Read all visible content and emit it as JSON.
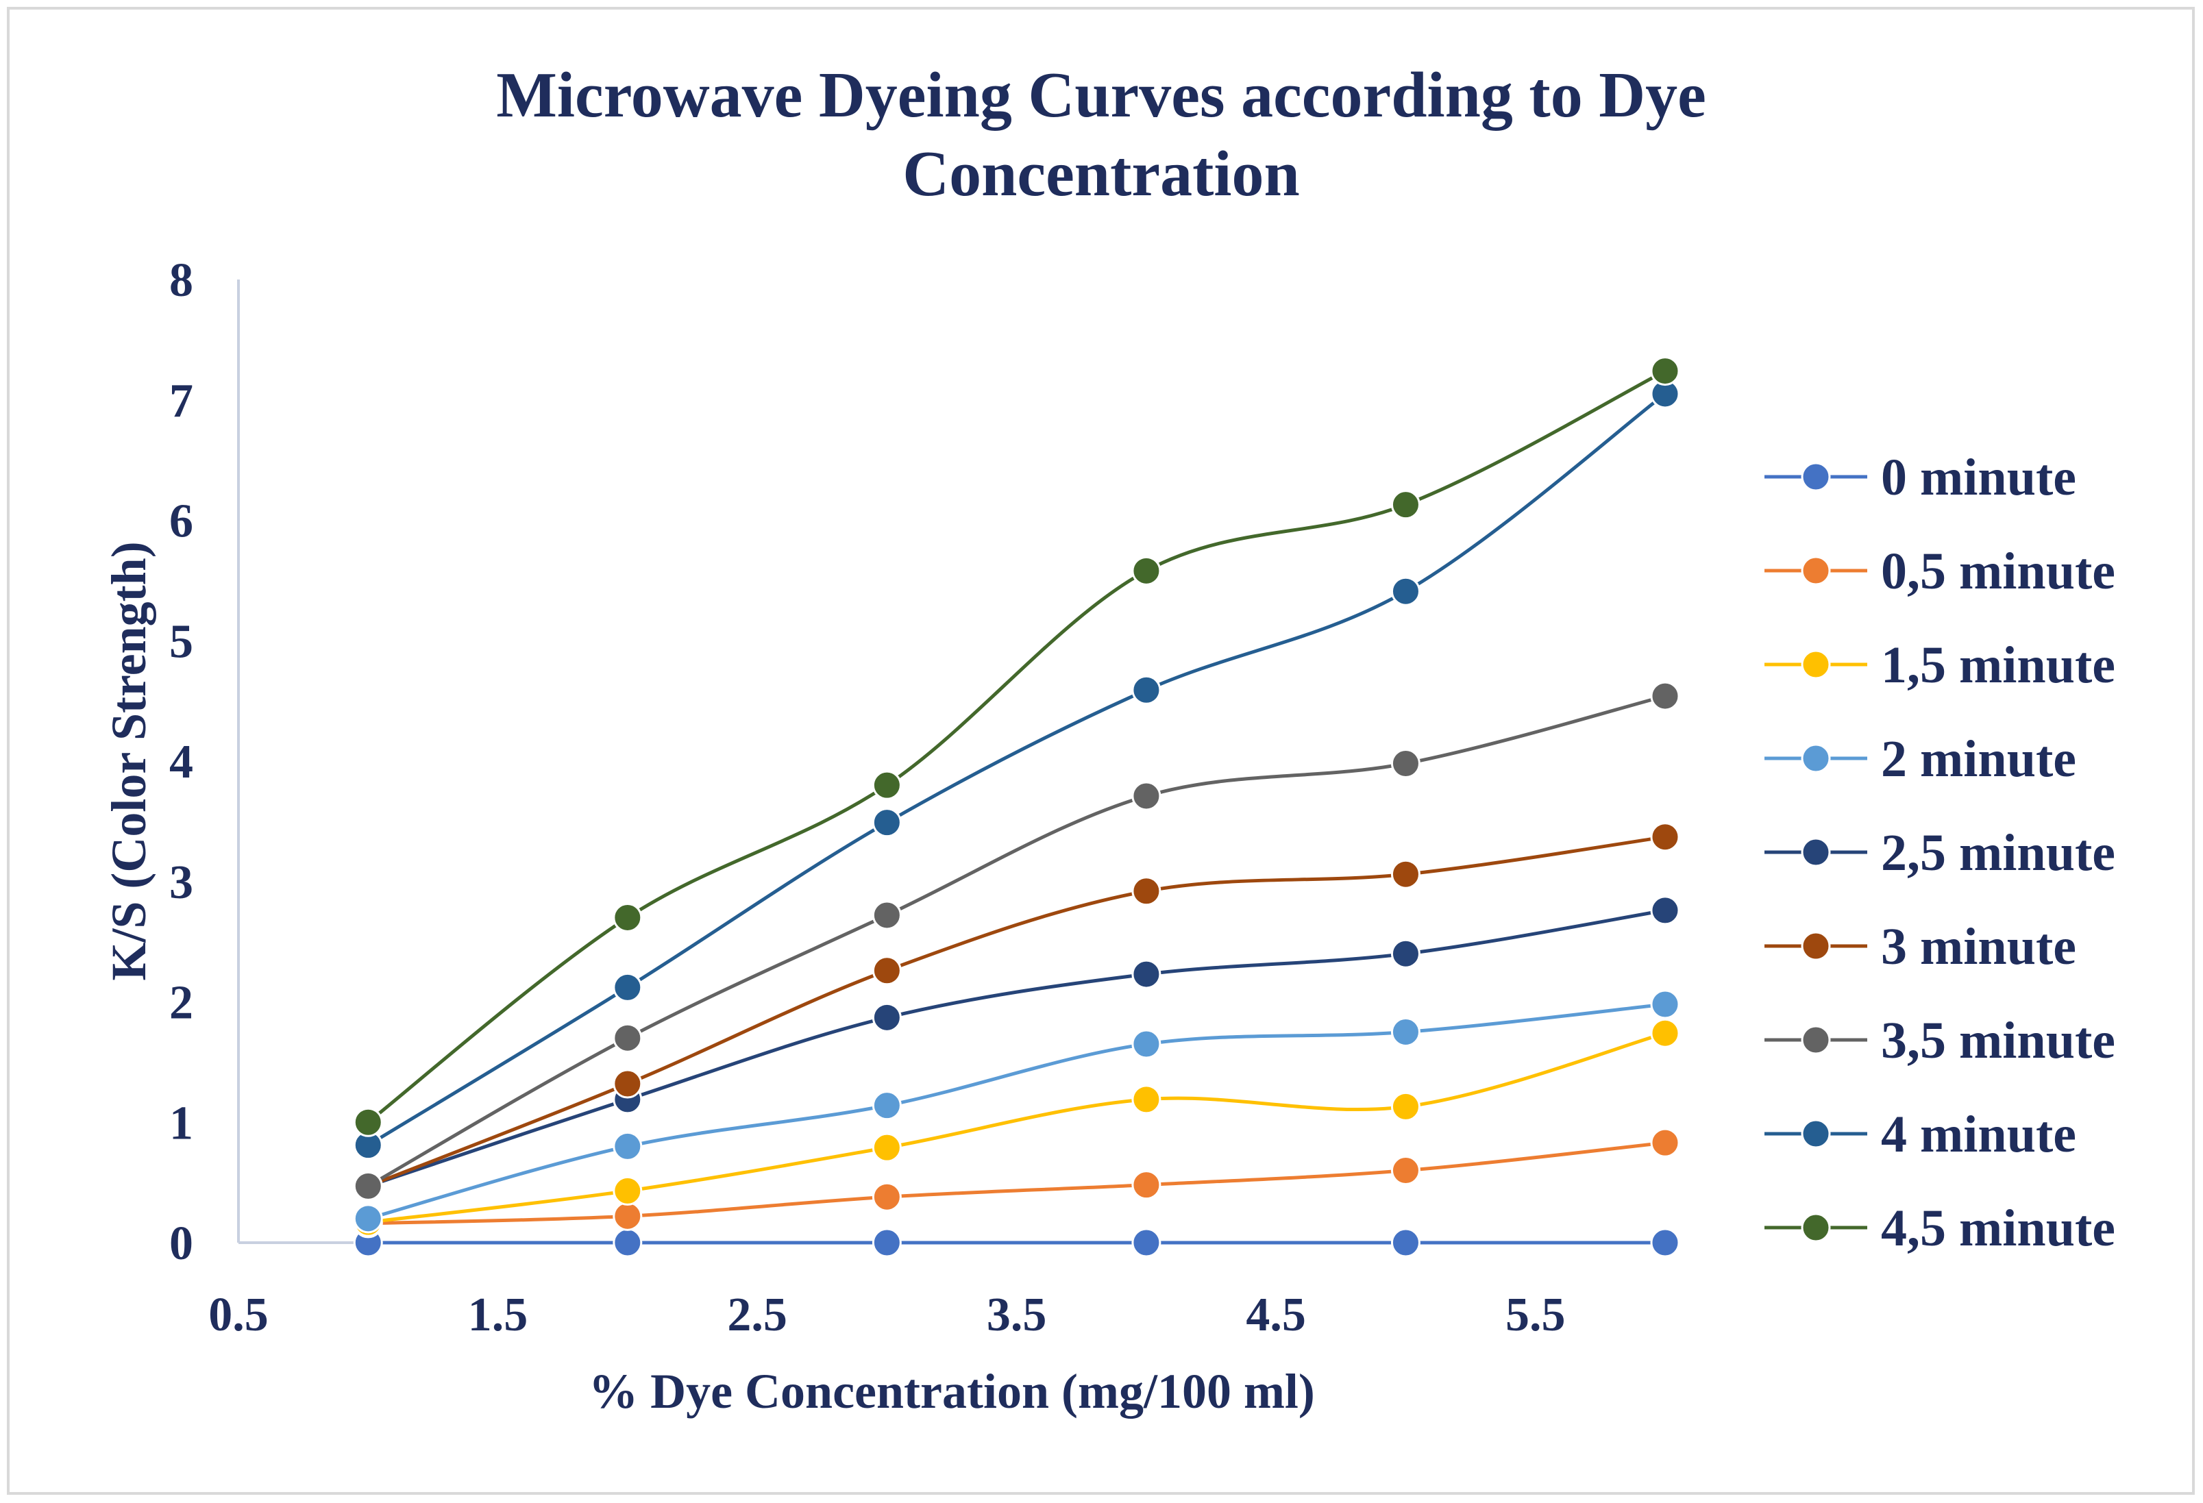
{
  "chart_data": {
    "type": "scatter",
    "title_lines": [
      "Microwave Dyeing Curves according to Dye",
      "Concentration"
    ],
    "xlabel": "% Dye Concentration (mg/100 ml)",
    "ylabel": "K/S (Color Strength)",
    "xlim": [
      0.5,
      6.0
    ],
    "ylim": [
      0,
      8
    ],
    "x_ticks": [
      "0.5",
      "1.5",
      "2.5",
      "3.5",
      "4.5",
      "5.5"
    ],
    "x_tick_values": [
      0.5,
      1.5,
      2.5,
      3.5,
      4.5,
      5.5
    ],
    "y_ticks": [
      "0",
      "1",
      "2",
      "3",
      "4",
      "5",
      "6",
      "7",
      "8"
    ],
    "y_tick_values": [
      0,
      1,
      2,
      3,
      4,
      5,
      6,
      7,
      8
    ],
    "grid": false,
    "smooth_lines": true,
    "legend_position": "right",
    "x": [
      1,
      2,
      3,
      4,
      5,
      6
    ],
    "series": [
      {
        "name": "0 minute",
        "color": "#4472c4",
        "values": [
          0.0,
          0.0,
          0.0,
          0.0,
          0.0,
          0.0
        ]
      },
      {
        "name": "0,5 minute",
        "color": "#ed7d31",
        "values": [
          0.16,
          0.22,
          0.38,
          0.48,
          0.6,
          0.83
        ]
      },
      {
        "name": "1,5 minute",
        "color": "#ffc000",
        "values": [
          0.17,
          0.43,
          0.79,
          1.19,
          1.13,
          1.74
        ]
      },
      {
        "name": "2 minute",
        "color": "#5b9bd5",
        "values": [
          0.2,
          0.8,
          1.14,
          1.65,
          1.75,
          1.98
        ]
      },
      {
        "name": "2,5 minute",
        "color": "#264478",
        "values": [
          0.47,
          1.19,
          1.87,
          2.23,
          2.4,
          2.76
        ]
      },
      {
        "name": "3 minute",
        "color": "#9e480e",
        "values": [
          0.47,
          1.32,
          2.26,
          2.92,
          3.06,
          3.37
        ]
      },
      {
        "name": "3,5 minute",
        "color": "#636363",
        "values": [
          0.47,
          1.7,
          2.72,
          3.71,
          3.98,
          4.54
        ]
      },
      {
        "name": "4 minute",
        "color": "#255e91",
        "values": [
          0.81,
          2.12,
          3.49,
          4.59,
          5.41,
          7.05
        ]
      },
      {
        "name": "4,5 minute",
        "color": "#43682b",
        "values": [
          1.0,
          2.7,
          3.8,
          5.58,
          6.13,
          7.24
        ]
      }
    ]
  }
}
